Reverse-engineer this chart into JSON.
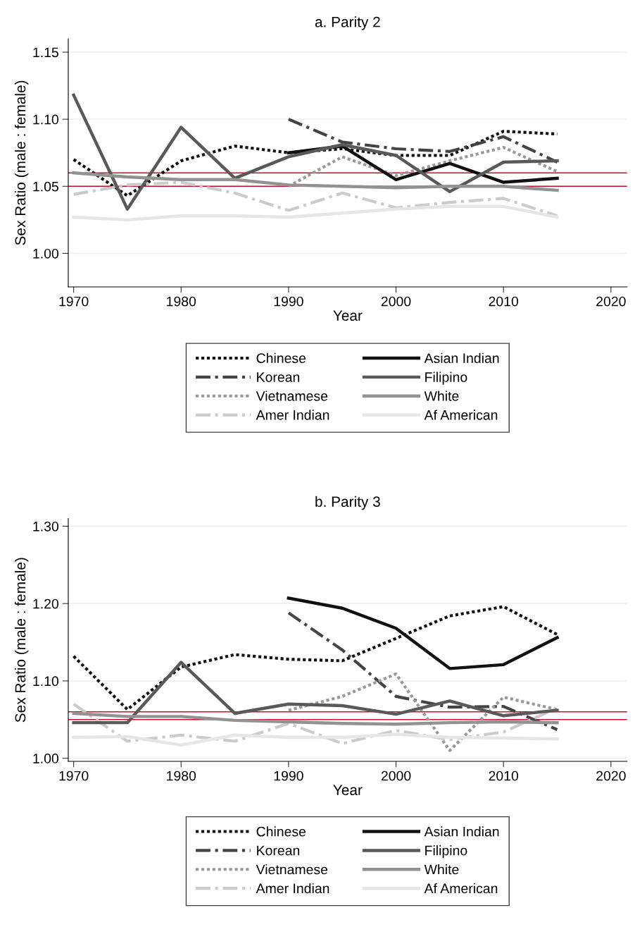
{
  "chart_data": [
    {
      "type": "line",
      "title": "a. Parity 2",
      "xlabel": "Year",
      "ylabel": "Sex Ratio (male : female)",
      "x": [
        1970,
        1975,
        1980,
        1985,
        1990,
        1995,
        2000,
        2005,
        2010,
        2015
      ],
      "xlim": [
        1969.5,
        2021.5
      ],
      "xticks": [
        1970,
        1980,
        1990,
        2000,
        2010,
        2020
      ],
      "ylim": [
        0.975,
        1.16
      ],
      "yticks": [
        {
          "value": 1.0,
          "label": "1.00"
        },
        {
          "value": 1.05,
          "label": "1.05"
        },
        {
          "value": 1.1,
          "label": "1.10"
        },
        {
          "value": 1.15,
          "label": "1.15"
        }
      ],
      "grid": "y",
      "legend": "bottom",
      "marker": "none",
      "ref_lines": [
        {
          "axis": "y",
          "value": 1.05,
          "color": "#c8102e"
        },
        {
          "axis": "y",
          "value": 1.06,
          "color": "#c8102e"
        }
      ],
      "series": [
        {
          "name": "Chinese",
          "color": "#111111",
          "line_style": "dotted",
          "values": [
            1.07,
            1.043,
            1.069,
            1.08,
            1.075,
            1.078,
            1.073,
            1.073,
            1.091,
            1.089
          ]
        },
        {
          "name": "Korean",
          "color": "#444444",
          "line_style": "dashed",
          "values": [
            null,
            null,
            null,
            null,
            1.1,
            1.083,
            1.078,
            1.076,
            1.087,
            1.068
          ]
        },
        {
          "name": "Vietnamese",
          "color": "#999999",
          "line_style": "dotted",
          "values": [
            null,
            null,
            null,
            null,
            1.05,
            1.072,
            1.058,
            1.069,
            1.079,
            1.061
          ]
        },
        {
          "name": "Amer Indian",
          "color": "#cccaca",
          "line_style": "dashed",
          "values": [
            1.044,
            1.051,
            1.053,
            1.045,
            1.032,
            1.045,
            1.034,
            1.038,
            1.041,
            1.028
          ]
        },
        {
          "name": "Asian Indian",
          "color": "#111111",
          "line_style": "solid",
          "values": [
            null,
            null,
            null,
            null,
            1.075,
            1.08,
            1.055,
            1.067,
            1.053,
            1.056
          ]
        },
        {
          "name": "Filipino",
          "color": "#5a5858",
          "line_style": "solid",
          "values": [
            1.118,
            1.033,
            1.094,
            1.056,
            1.072,
            1.081,
            1.073,
            1.046,
            1.068,
            1.069
          ]
        },
        {
          "name": "White",
          "color": "#929292",
          "line_style": "solid",
          "values": [
            1.06,
            1.057,
            1.055,
            1.055,
            1.051,
            1.05,
            1.049,
            1.05,
            1.05,
            1.047
          ]
        },
        {
          "name": "Af American",
          "color": "#e6e6e6",
          "line_style": "solid",
          "values": [
            1.027,
            1.025,
            1.028,
            1.028,
            1.027,
            1.03,
            1.033,
            1.035,
            1.035,
            1.027
          ]
        }
      ]
    },
    {
      "type": "line",
      "title": "b. Parity 3",
      "xlabel": "Year",
      "ylabel": "Sex Ratio (male : female)",
      "x": [
        1970,
        1975,
        1980,
        1985,
        1990,
        1995,
        2000,
        2005,
        2010,
        2015
      ],
      "xlim": [
        1969.5,
        2021.5
      ],
      "xticks": [
        1970,
        1980,
        1990,
        2000,
        2010,
        2020
      ],
      "ylim": [
        0.996,
        1.31
      ],
      "yticks": [
        {
          "value": 1.0,
          "label": "1.00"
        },
        {
          "value": 1.1,
          "label": "1.10"
        },
        {
          "value": 1.2,
          "label": "1.20"
        },
        {
          "value": 1.3,
          "label": "1.30"
        }
      ],
      "grid": "y",
      "legend": "bottom",
      "marker": "none",
      "ref_lines": [
        {
          "axis": "y",
          "value": 1.05,
          "color": "#c8102e"
        },
        {
          "axis": "y",
          "value": 1.06,
          "color": "#c8102e"
        }
      ],
      "series": [
        {
          "name": "Chinese",
          "color": "#111111",
          "line_style": "dotted",
          "values": [
            1.132,
            1.063,
            1.118,
            1.134,
            1.128,
            1.126,
            1.155,
            1.184,
            1.196,
            1.16
          ]
        },
        {
          "name": "Korean",
          "color": "#444444",
          "line_style": "dashed",
          "values": [
            null,
            null,
            null,
            null,
            1.188,
            1.14,
            1.08,
            1.066,
            1.067,
            1.037
          ]
        },
        {
          "name": "Vietnamese",
          "color": "#999999",
          "line_style": "dotted",
          "values": [
            null,
            null,
            null,
            null,
            1.062,
            1.08,
            1.109,
            1.01,
            1.079,
            1.063
          ]
        },
        {
          "name": "Amer Indian",
          "color": "#cccaca",
          "line_style": "dashed",
          "values": [
            1.07,
            1.022,
            1.03,
            1.022,
            1.045,
            1.019,
            1.036,
            1.024,
            1.034,
            1.065
          ]
        },
        {
          "name": "Asian Indian",
          "color": "#111111",
          "line_style": "solid",
          "values": [
            null,
            null,
            null,
            null,
            1.207,
            1.194,
            1.168,
            1.116,
            1.121,
            1.156
          ]
        },
        {
          "name": "Filipino",
          "color": "#5a5858",
          "line_style": "solid",
          "values": [
            1.046,
            1.046,
            1.124,
            1.058,
            1.07,
            1.068,
            1.057,
            1.074,
            1.055,
            1.062
          ]
        },
        {
          "name": "White",
          "color": "#929292",
          "line_style": "solid",
          "values": [
            1.058,
            1.054,
            1.054,
            1.049,
            1.047,
            1.045,
            1.044,
            1.046,
            1.047,
            1.046
          ]
        },
        {
          "name": "Af American",
          "color": "#e6e6e6",
          "line_style": "solid",
          "values": [
            1.027,
            1.028,
            1.017,
            1.03,
            1.027,
            1.027,
            1.031,
            1.027,
            1.026,
            1.025
          ]
        }
      ]
    }
  ]
}
